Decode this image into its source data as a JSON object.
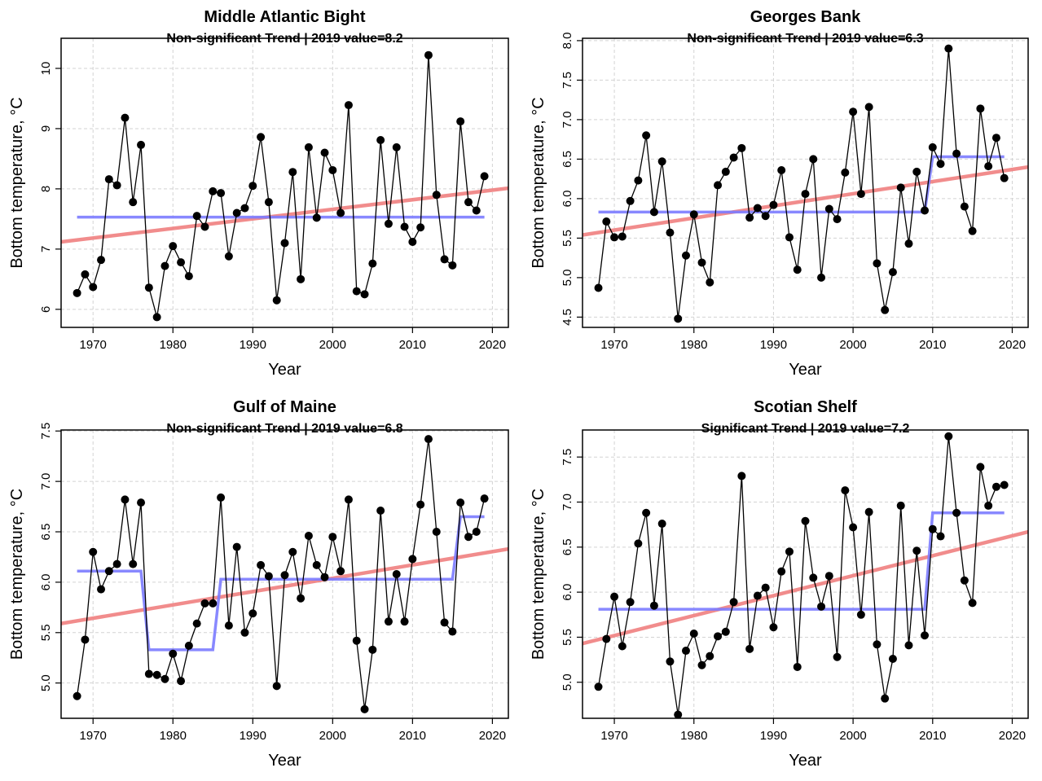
{
  "figure": {
    "colors": {
      "points": "#000000",
      "trend": "#f08080",
      "steps": "#7b7bff",
      "grid": "#d3d3d3"
    }
  },
  "chart_data": [
    {
      "type": "line",
      "title": "Middle Atlantic Bight",
      "subtitle": "Non-significant Trend | 2019 value=8.2",
      "xlabel": "Year",
      "ylabel": "Bottom temperature, °C",
      "xlim": [
        1966,
        2022
      ],
      "ylim": [
        5.7,
        10.5
      ],
      "xticks": [
        1970,
        1980,
        1990,
        2000,
        2010,
        2020
      ],
      "xtick_labels": [
        "1970",
        "1980",
        "1990",
        "2000",
        "2010",
        "2020"
      ],
      "yticks": [
        6,
        7,
        8,
        9,
        10
      ],
      "ytick_labels": [
        "6",
        "7",
        "8",
        "9",
        "10"
      ],
      "grid": true,
      "x": [
        1968,
        1969,
        1970,
        1971,
        1972,
        1973,
        1974,
        1975,
        1976,
        1977,
        1978,
        1979,
        1980,
        1981,
        1982,
        1983,
        1984,
        1985,
        1986,
        1987,
        1988,
        1989,
        1990,
        1991,
        1992,
        1993,
        1994,
        1995,
        1996,
        1997,
        1998,
        1999,
        2000,
        2001,
        2002,
        2003,
        2004,
        2005,
        2006,
        2007,
        2008,
        2009,
        2010,
        2011,
        2012,
        2013,
        2014,
        2015,
        2016,
        2017,
        2018,
        2019
      ],
      "values": [
        6.27,
        6.58,
        6.37,
        6.82,
        8.16,
        8.06,
        9.18,
        7.78,
        8.73,
        6.36,
        5.87,
        6.72,
        7.05,
        6.78,
        6.55,
        7.55,
        7.37,
        7.96,
        7.93,
        6.88,
        7.6,
        7.68,
        8.05,
        8.86,
        7.78,
        6.15,
        7.1,
        8.28,
        6.5,
        8.69,
        7.52,
        8.6,
        8.31,
        7.6,
        9.39,
        6.3,
        6.25,
        6.76,
        8.81,
        7.42,
        8.69,
        7.37,
        7.12,
        7.36,
        10.22,
        7.9,
        6.83,
        6.73,
        9.12,
        7.78,
        7.64,
        8.21
      ],
      "trend": {
        "x": [
          1966,
          2022
        ],
        "y": [
          7.12,
          8.01
        ]
      },
      "steps": {
        "x": [
          1968,
          2019
        ],
        "y": [
          7.53,
          7.53
        ]
      }
    },
    {
      "type": "line",
      "title": "Georges Bank",
      "subtitle": "Non-significant Trend | 2019 value=6.3",
      "xlabel": "Year",
      "ylabel": "Bottom temperature, °C",
      "xlim": [
        1966,
        2022
      ],
      "ylim": [
        4.37,
        8.03
      ],
      "xticks": [
        1970,
        1980,
        1990,
        2000,
        2010,
        2020
      ],
      "xtick_labels": [
        "1970",
        "1980",
        "1990",
        "2000",
        "2010",
        "2020"
      ],
      "yticks": [
        4.5,
        5.0,
        5.5,
        6.0,
        6.5,
        7.0,
        7.5,
        8.0
      ],
      "ytick_labels": [
        "4.5",
        "5.0",
        "5.5",
        "6.0",
        "6.5",
        "7.0",
        "7.5",
        "8.0"
      ],
      "grid": true,
      "x": [
        1968,
        1969,
        1970,
        1971,
        1972,
        1973,
        1974,
        1975,
        1976,
        1977,
        1978,
        1979,
        1980,
        1981,
        1982,
        1983,
        1984,
        1985,
        1986,
        1987,
        1988,
        1989,
        1990,
        1991,
        1992,
        1993,
        1994,
        1995,
        1996,
        1997,
        1998,
        1999,
        2000,
        2001,
        2002,
        2003,
        2004,
        2005,
        2006,
        2007,
        2008,
        2009,
        2010,
        2011,
        2012,
        2013,
        2014,
        2015,
        2016,
        2017,
        2018,
        2019
      ],
      "values": [
        4.87,
        5.71,
        5.51,
        5.52,
        5.97,
        6.23,
        6.8,
        5.83,
        6.47,
        5.57,
        4.48,
        5.28,
        5.8,
        5.19,
        4.94,
        6.17,
        6.34,
        6.52,
        6.64,
        5.76,
        5.88,
        5.78,
        5.92,
        6.36,
        5.51,
        5.1,
        6.06,
        6.5,
        5.0,
        5.87,
        5.74,
        6.33,
        7.1,
        6.06,
        7.16,
        5.18,
        4.59,
        5.07,
        6.14,
        5.43,
        6.34,
        5.85,
        6.65,
        6.44,
        7.9,
        6.57,
        5.9,
        5.59,
        7.14,
        6.41,
        6.77,
        6.26
      ],
      "trend": {
        "x": [
          1966,
          2022
        ],
        "y": [
          5.54,
          6.4
        ]
      },
      "steps": {
        "x": [
          1968,
          2009,
          2010,
          2019
        ],
        "y": [
          5.83,
          5.83,
          6.53,
          6.53
        ]
      }
    },
    {
      "type": "line",
      "title": "Gulf of Maine",
      "subtitle": "Non-significant Trend | 2019 value=6.8",
      "xlabel": "Year",
      "ylabel": "Bottom temperature, °C",
      "xlim": [
        1966,
        2022
      ],
      "ylim": [
        4.65,
        7.51
      ],
      "xticks": [
        1970,
        1980,
        1990,
        2000,
        2010,
        2020
      ],
      "xtick_labels": [
        "1970",
        "1980",
        "1990",
        "2000",
        "2010",
        "2020"
      ],
      "yticks": [
        5.0,
        5.5,
        6.0,
        6.5,
        7.0,
        7.5
      ],
      "ytick_labels": [
        "5.0",
        "5.5",
        "6.0",
        "6.5",
        "7.0",
        "7.5"
      ],
      "grid": true,
      "x": [
        1968,
        1969,
        1970,
        1971,
        1972,
        1973,
        1974,
        1975,
        1976,
        1977,
        1978,
        1979,
        1980,
        1981,
        1982,
        1983,
        1984,
        1985,
        1986,
        1987,
        1988,
        1989,
        1990,
        1991,
        1992,
        1993,
        1994,
        1995,
        1996,
        1997,
        1998,
        1999,
        2000,
        2001,
        2002,
        2003,
        2004,
        2005,
        2006,
        2007,
        2008,
        2009,
        2010,
        2011,
        2012,
        2013,
        2014,
        2015,
        2016,
        2017,
        2018,
        2019
      ],
      "values": [
        4.87,
        5.43,
        6.3,
        5.93,
        6.11,
        6.18,
        6.82,
        6.18,
        6.79,
        5.09,
        5.08,
        5.04,
        5.29,
        5.02,
        5.37,
        5.59,
        5.79,
        5.79,
        6.84,
        5.57,
        6.35,
        5.5,
        5.69,
        6.17,
        6.06,
        4.97,
        6.07,
        6.3,
        5.84,
        6.46,
        6.17,
        6.05,
        6.45,
        6.11,
        6.82,
        5.42,
        4.74,
        5.33,
        6.71,
        5.61,
        6.08,
        5.61,
        6.23,
        6.77,
        7.42,
        6.5,
        5.6,
        5.51,
        6.79,
        6.45,
        6.5,
        6.83
      ],
      "trend": {
        "x": [
          1966,
          2022
        ],
        "y": [
          5.59,
          6.33
        ]
      },
      "steps": {
        "x": [
          1968,
          1976,
          1977,
          1985,
          1986,
          2015,
          2016,
          2019
        ],
        "y": [
          6.11,
          6.11,
          5.33,
          5.33,
          6.03,
          6.03,
          6.65,
          6.65
        ]
      }
    },
    {
      "type": "line",
      "title": "Scotian Shelf",
      "subtitle": "Significant Trend | 2019 value=7.2",
      "xlabel": "Year",
      "ylabel": "Bottom temperature, °C",
      "xlim": [
        1966,
        2022
      ],
      "ylim": [
        4.6,
        7.8
      ],
      "xticks": [
        1970,
        1980,
        1990,
        2000,
        2010,
        2020
      ],
      "xtick_labels": [
        "1970",
        "1980",
        "1990",
        "2000",
        "2010",
        "2020"
      ],
      "yticks": [
        5.0,
        5.5,
        6.0,
        6.5,
        7.0,
        7.5
      ],
      "ytick_labels": [
        "5.0",
        "5.5",
        "6.0",
        "6.5",
        "7.0",
        "7.5"
      ],
      "grid": true,
      "x": [
        1968,
        1969,
        1970,
        1971,
        1972,
        1973,
        1974,
        1975,
        1976,
        1977,
        1978,
        1979,
        1980,
        1981,
        1982,
        1983,
        1984,
        1985,
        1986,
        1987,
        1988,
        1989,
        1990,
        1991,
        1992,
        1993,
        1994,
        1995,
        1996,
        1997,
        1998,
        1999,
        2000,
        2001,
        2002,
        2003,
        2004,
        2005,
        2006,
        2007,
        2008,
        2009,
        2010,
        2011,
        2012,
        2013,
        2014,
        2015,
        2016,
        2017,
        2018,
        2019
      ],
      "values": [
        4.95,
        5.48,
        5.95,
        5.4,
        5.89,
        6.54,
        6.88,
        5.85,
        6.76,
        5.23,
        4.64,
        5.35,
        5.54,
        5.19,
        5.29,
        5.51,
        5.56,
        5.89,
        7.29,
        5.37,
        5.96,
        6.05,
        5.61,
        6.23,
        6.45,
        5.17,
        6.79,
        6.16,
        5.84,
        6.18,
        5.28,
        7.13,
        6.72,
        5.75,
        6.89,
        5.42,
        4.82,
        5.26,
        6.96,
        5.41,
        6.46,
        5.52,
        6.7,
        6.62,
        7.73,
        6.88,
        6.13,
        5.88,
        7.39,
        6.96,
        7.17,
        7.19
      ],
      "trend": {
        "x": [
          1966,
          2022
        ],
        "y": [
          5.43,
          6.67
        ]
      },
      "steps": {
        "x": [
          1968,
          2009,
          2010,
          2019
        ],
        "y": [
          5.81,
          5.81,
          6.88,
          6.88
        ]
      }
    }
  ]
}
